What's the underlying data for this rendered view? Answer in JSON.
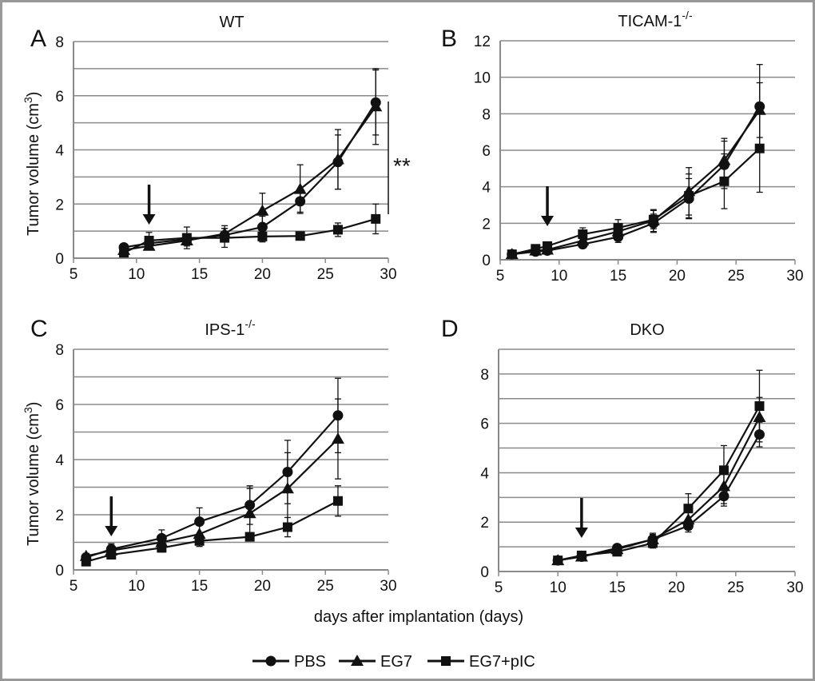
{
  "figure": {
    "shared_xlabel": "days after implantation (days)",
    "ylabel_prefix": "Tumor volume (cm",
    "ylabel_sup": "3",
    "ylabel_suffix": ")",
    "significance": "**"
  },
  "legend": [
    {
      "label": "PBS",
      "marker": "circle"
    },
    {
      "label": "EG7",
      "marker": "triangle"
    },
    {
      "label": "EG7+pIC",
      "marker": "square"
    }
  ],
  "colors": {
    "line": "#111111",
    "grid": "#8a8a8a",
    "frame": "#999999"
  },
  "chart_data": [
    {
      "panel": "A",
      "type": "line",
      "title": "WT",
      "title_sup": "",
      "xlim": [
        5,
        30
      ],
      "ylim": [
        0,
        8
      ],
      "xticks": [
        5,
        10,
        15,
        20,
        25,
        30
      ],
      "yticks": [
        0,
        2,
        4,
        6,
        8
      ],
      "gridlines": [
        1,
        2,
        3,
        4,
        5,
        6,
        7,
        8
      ],
      "arrow_x": 11,
      "series": [
        {
          "name": "PBS",
          "marker": "circle",
          "x": [
            9,
            11,
            14,
            17,
            20,
            23,
            26,
            29
          ],
          "y": [
            0.4,
            0.55,
            0.7,
            0.85,
            1.15,
            2.1,
            3.55,
            5.75
          ],
          "err": [
            0.1,
            0.15,
            0.2,
            0.25,
            0.4,
            0.4,
            1.0,
            1.2
          ]
        },
        {
          "name": "EG7",
          "marker": "triangle",
          "x": [
            9,
            11,
            14,
            17,
            20,
            23,
            26,
            29
          ],
          "y": [
            0.3,
            0.45,
            0.65,
            0.9,
            1.75,
            2.55,
            3.65,
            5.6
          ],
          "err": [
            0.1,
            0.15,
            0.2,
            0.3,
            0.65,
            0.9,
            1.1,
            1.4
          ]
        },
        {
          "name": "EG7+pIC",
          "marker": "square",
          "x": [
            9,
            11,
            14,
            17,
            20,
            23,
            26,
            29
          ],
          "y": [
            0.2,
            0.65,
            0.75,
            0.75,
            0.8,
            0.82,
            1.05,
            1.45
          ],
          "err": [
            0.1,
            0.3,
            0.4,
            0.35,
            0.2,
            0.1,
            0.25,
            0.55
          ]
        }
      ]
    },
    {
      "panel": "B",
      "type": "line",
      "title": "TICAM-1",
      "title_sup": "-/-",
      "xlim": [
        5,
        30
      ],
      "ylim": [
        0,
        12
      ],
      "xticks": [
        5,
        10,
        15,
        20,
        25,
        30
      ],
      "yticks": [
        0,
        2,
        4,
        6,
        8,
        10,
        12
      ],
      "gridlines": [
        2,
        4,
        6,
        8,
        10,
        12
      ],
      "arrow_x": 9,
      "series": [
        {
          "name": "PBS",
          "marker": "circle",
          "x": [
            6,
            8,
            9,
            12,
            15,
            18,
            21,
            24,
            27
          ],
          "y": [
            0.3,
            0.45,
            0.5,
            0.85,
            1.25,
            2.0,
            3.35,
            5.2,
            8.4
          ],
          "err": [
            0.1,
            0.1,
            0.15,
            0.2,
            0.3,
            0.5,
            1.1,
            1.3,
            2.3
          ]
        },
        {
          "name": "EG7",
          "marker": "triangle",
          "x": [
            6,
            8,
            9,
            12,
            15,
            18,
            21,
            24,
            27
          ],
          "y": [
            0.3,
            0.5,
            0.55,
            1.05,
            1.55,
            2.15,
            3.75,
            5.45,
            8.2
          ],
          "err": [
            0.1,
            0.1,
            0.15,
            0.3,
            0.4,
            0.6,
            1.3,
            1.2,
            1.5
          ]
        },
        {
          "name": "EG7+pIC",
          "marker": "square",
          "x": [
            6,
            8,
            9,
            12,
            15,
            18,
            21,
            24,
            27
          ],
          "y": [
            0.3,
            0.6,
            0.75,
            1.4,
            1.75,
            2.2,
            3.5,
            4.3,
            6.1
          ],
          "err": [
            0.1,
            0.15,
            0.2,
            0.35,
            0.45,
            0.5,
            1.2,
            1.5,
            2.4
          ]
        }
      ]
    },
    {
      "panel": "C",
      "type": "line",
      "title": "IPS-1",
      "title_sup": "-/-",
      "xlim": [
        5,
        30
      ],
      "ylim": [
        0,
        8
      ],
      "xticks": [
        5,
        10,
        15,
        20,
        25,
        30
      ],
      "yticks": [
        0,
        2,
        4,
        6,
        8
      ],
      "gridlines": [
        1,
        2,
        3,
        4,
        5,
        6,
        7,
        8
      ],
      "arrow_x": 8,
      "series": [
        {
          "name": "PBS",
          "marker": "circle",
          "x": [
            6,
            8,
            12,
            15,
            19,
            22,
            26
          ],
          "y": [
            0.45,
            0.75,
            1.15,
            1.75,
            2.35,
            3.55,
            5.6
          ],
          "err": [
            0.1,
            0.2,
            0.3,
            0.5,
            0.7,
            1.15,
            1.35
          ]
        },
        {
          "name": "EG7",
          "marker": "triangle",
          "x": [
            6,
            8,
            12,
            15,
            19,
            22,
            26
          ],
          "y": [
            0.5,
            0.7,
            1.0,
            1.3,
            2.05,
            2.95,
            4.75
          ],
          "err": [
            0.1,
            0.2,
            0.25,
            0.35,
            0.9,
            1.3,
            1.45
          ]
        },
        {
          "name": "EG7+pIC",
          "marker": "square",
          "x": [
            6,
            8,
            12,
            15,
            19,
            22,
            26
          ],
          "y": [
            0.3,
            0.55,
            0.8,
            1.05,
            1.2,
            1.55,
            2.5
          ],
          "err": [
            0.1,
            0.15,
            0.15,
            0.2,
            0.15,
            0.35,
            0.55
          ]
        }
      ]
    },
    {
      "panel": "D",
      "type": "line",
      "title": "DKO",
      "title_sup": "",
      "xlim": [
        5,
        30
      ],
      "ylim": [
        0,
        9
      ],
      "xticks": [
        5,
        10,
        15,
        20,
        25,
        30
      ],
      "yticks": [
        0,
        2,
        4,
        6,
        8
      ],
      "gridlines": [
        1,
        2,
        3,
        4,
        5,
        6,
        7,
        8,
        9
      ],
      "arrow_x": 12,
      "series": [
        {
          "name": "PBS",
          "marker": "circle",
          "x": [
            10,
            12,
            15,
            18,
            21,
            24,
            27
          ],
          "y": [
            0.45,
            0.6,
            0.95,
            1.3,
            1.85,
            3.05,
            5.55
          ],
          "err": [
            0.1,
            0.1,
            0.15,
            0.2,
            0.25,
            0.4,
            0.5
          ]
        },
        {
          "name": "EG7",
          "marker": "triangle",
          "x": [
            10,
            12,
            15,
            18,
            21,
            24,
            27
          ],
          "y": [
            0.45,
            0.6,
            0.9,
            1.3,
            2.1,
            3.45,
            6.25
          ],
          "err": [
            0.1,
            0.1,
            0.15,
            0.25,
            0.3,
            0.7,
            0.8
          ]
        },
        {
          "name": "EG7+pIC",
          "marker": "square",
          "x": [
            10,
            12,
            15,
            18,
            21,
            24,
            27
          ],
          "y": [
            0.45,
            0.65,
            0.8,
            1.15,
            2.55,
            4.1,
            6.7
          ],
          "err": [
            0.1,
            0.1,
            0.15,
            0.2,
            0.6,
            1.0,
            1.45
          ]
        }
      ]
    }
  ]
}
